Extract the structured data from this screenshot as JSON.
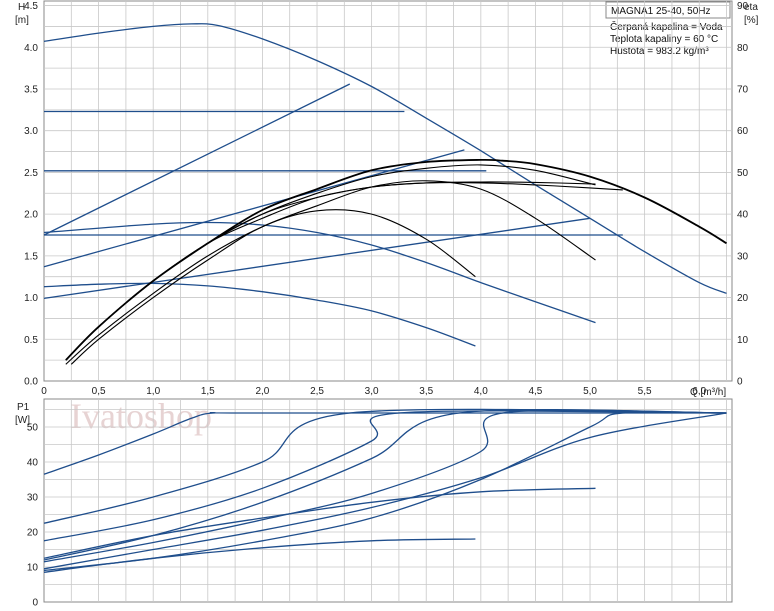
{
  "title": "MAGNA1 25-40, 50Hz",
  "info": [
    "Čerpaná kapalina = Voda",
    "Teplota kapaliny = 60 °C",
    "Hustota = 983.2 kg/m³"
  ],
  "watermark": "Ivatoshop",
  "colors": {
    "blue": "#1f4e8c",
    "black": "#000000",
    "grid": "#c8c8c8",
    "frame": "#888888"
  },
  "chart_data": [
    {
      "type": "line",
      "xlabel": "Q [m³/h]",
      "ylabel": "H",
      "ylabel_unit": "[m]",
      "y2label": "eta",
      "y2label_unit": "[%]",
      "xlim": [
        0,
        6.3
      ],
      "ylim": [
        0,
        4.5
      ],
      "y2lim": [
        0,
        90
      ],
      "xticks": [
        "0",
        "0,5",
        "1,0",
        "1,5",
        "2,0",
        "2,5",
        "3,0",
        "3,5",
        "4,0",
        "4,5",
        "5,0",
        "5,5",
        "6,0"
      ],
      "yticks": [
        "0.0",
        "0.5",
        "1.0",
        "1.5",
        "2.0",
        "2.5",
        "3.0",
        "3.5",
        "4.0",
        "4.5"
      ],
      "y2ticks": [
        "0",
        "10",
        "20",
        "30",
        "40",
        "50",
        "60",
        "70",
        "80",
        "90"
      ],
      "grid": true,
      "head_curves": [
        {
          "x": [
            0,
            0.5,
            1.0,
            1.35,
            1.6,
            2.0,
            2.5,
            3.0,
            3.5,
            4.0,
            4.5,
            5.0,
            5.5,
            6.0,
            6.25
          ],
          "y": [
            4.07,
            4.17,
            4.25,
            4.28,
            4.26,
            4.1,
            3.84,
            3.53,
            3.15,
            2.76,
            2.35,
            1.95,
            1.55,
            1.18,
            1.05
          ]
        },
        {
          "x": [
            0,
            3.3
          ],
          "y": [
            3.23,
            3.23
          ]
        },
        {
          "x": [
            0,
            4.05
          ],
          "y": [
            2.52,
            2.52
          ]
        },
        {
          "x": [
            0,
            5.3
          ],
          "y": [
            1.75,
            1.75
          ]
        },
        {
          "x": [
            0,
            1.0,
            1.5,
            2.0,
            2.5,
            3.0,
            3.5,
            4.0,
            4.5,
            5.05
          ],
          "y": [
            1.78,
            1.88,
            1.9,
            1.87,
            1.78,
            1.63,
            1.42,
            1.18,
            0.95,
            0.7
          ]
        },
        {
          "x": [
            0,
            0.5,
            1.0,
            1.5,
            2.0,
            2.5,
            3.0,
            3.5,
            3.95
          ],
          "y": [
            1.13,
            1.16,
            1.17,
            1.14,
            1.07,
            0.97,
            0.84,
            0.64,
            0.42
          ]
        },
        {
          "x": [
            0,
            2.8
          ],
          "y": [
            1.75,
            3.56
          ]
        },
        {
          "x": [
            0,
            3.85
          ],
          "y": [
            1.37,
            2.77
          ]
        },
        {
          "x": [
            0,
            5.0
          ],
          "y": [
            0.99,
            1.95
          ]
        }
      ],
      "efficiency_curves": [
        {
          "x": [
            0.2,
            0.5,
            1.0,
            1.5,
            2.0,
            2.5,
            3.0,
            3.5,
            4.0,
            4.2,
            4.5,
            5.0,
            5.5,
            6.0,
            6.25
          ],
          "y": [
            5,
            13,
            24,
            33,
            41,
            46,
            50.5,
            52.5,
            53,
            52.8,
            52,
            49,
            44,
            37,
            33
          ]
        },
        {
          "x": [
            0.2,
            0.5,
            1.0,
            1.5,
            2.0,
            2.5,
            3.0,
            3.5,
            4.0,
            4.5,
            5.05
          ],
          "y": [
            5,
            13,
            24,
            33,
            40,
            45,
            49,
            51,
            51.8,
            50.5,
            47
          ]
        },
        {
          "x": [
            0.2,
            0.5,
            1.0,
            1.5,
            2.0,
            2.5,
            3.0,
            3.5,
            4.0,
            4.5,
            5.05
          ],
          "y": [
            5,
            13,
            24,
            33,
            40,
            44,
            46.5,
            47.5,
            47.7,
            47.6,
            47.2
          ]
        },
        {
          "x": [
            0.2,
            0.5,
            1.0,
            1.5,
            2.0,
            2.5,
            3.0,
            3.5,
            4.0,
            4.5,
            5.0,
            5.3
          ],
          "y": [
            5,
            13,
            24,
            33,
            39,
            44,
            46.5,
            47.5,
            47.5,
            47,
            46.3,
            45.8
          ]
        },
        {
          "x": [
            0.2,
            0.5,
            1.0,
            1.5,
            2.0,
            2.5,
            3.0,
            3.5,
            4.0,
            4.5,
            5.05
          ],
          "y": [
            4,
            11,
            21,
            30,
            37,
            42,
            46.5,
            48,
            46,
            39,
            29
          ]
        },
        {
          "x": [
            0.25,
            0.5,
            1.0,
            1.5,
            2.0,
            2.5,
            3.0,
            3.5,
            3.95
          ],
          "y": [
            4,
            10,
            20,
            29,
            37,
            40.8,
            40,
            34,
            25
          ]
        }
      ]
    },
    {
      "type": "line",
      "xlabel": "",
      "ylabel": "P1",
      "ylabel_unit": "[W]",
      "xlim": [
        0,
        6.3
      ],
      "ylim": [
        0,
        58
      ],
      "yticks": [
        "0",
        "10",
        "20",
        "30",
        "40",
        "50"
      ],
      "grid": true,
      "series": [
        {
          "x": [
            0,
            0.5,
            1.0,
            1.35,
            1.55,
            2.0,
            6.25
          ],
          "y": [
            36.5,
            42,
            48,
            52.5,
            54,
            54,
            54
          ]
        },
        {
          "x": [
            0,
            1.0,
            2.0,
            2.8,
            6.25
          ],
          "y": [
            22.5,
            30,
            40,
            54,
            54
          ]
        },
        {
          "x": [
            0,
            1.0,
            2.0,
            3.0,
            3.25,
            6.25
          ],
          "y": [
            17.5,
            23.5,
            32.5,
            46,
            54,
            54
          ]
        },
        {
          "x": [
            0,
            1.0,
            2.0,
            3.0,
            3.8,
            6.25
          ],
          "y": [
            12,
            19,
            28.5,
            41,
            54,
            54
          ]
        },
        {
          "x": [
            0,
            1.0,
            2.0,
            3.0,
            4.0,
            4.2,
            6.25
          ],
          "y": [
            11.5,
            17,
            23.5,
            31,
            43,
            54,
            54
          ]
        },
        {
          "x": [
            0,
            1.0,
            2.0,
            3.0,
            4.0,
            5.0,
            6.25
          ],
          "y": [
            9.5,
            15,
            20.5,
            27,
            35.5,
            47,
            54
          ]
        },
        {
          "x": [
            0,
            1.0,
            2.0,
            3.0,
            4.0,
            5.0,
            5.3,
            6.25
          ],
          "y": [
            9,
            12.5,
            17.5,
            24,
            35,
            50,
            54,
            54
          ]
        },
        {
          "x": [
            0,
            1.0,
            2.0,
            3.0,
            4.0,
            5.05
          ],
          "y": [
            12.5,
            19,
            24,
            28.5,
            31.5,
            32.5
          ]
        },
        {
          "x": [
            0,
            1.0,
            2.0,
            3.0,
            3.95
          ],
          "y": [
            8.5,
            12.5,
            15.5,
            17.5,
            18
          ]
        }
      ]
    }
  ]
}
